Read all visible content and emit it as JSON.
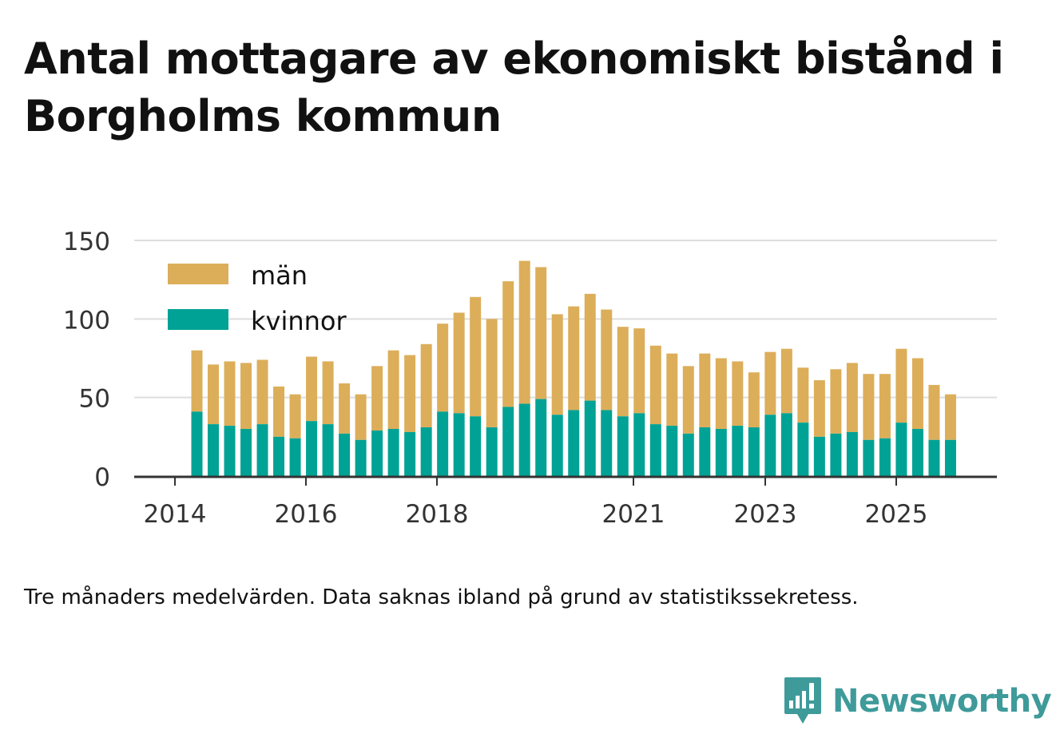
{
  "title": "Antal mottagare av ekonomiskt bistånd i Borgholms kommun",
  "note": "Tre månaders medelvärden. Data saknas ibland på grund av statistikssekretess.",
  "brand": "Newsworthy",
  "colors": {
    "man": "#dcae5a",
    "kvinnor": "#00a295",
    "grid": "#dddddd",
    "axis": "#333333",
    "brand": "#3f9a9a"
  },
  "chart_data": {
    "type": "bar",
    "stacked": true,
    "legend": "top-left",
    "grid": true,
    "ylim": [
      0,
      150
    ],
    "yticks": [
      0,
      50,
      100,
      150
    ],
    "xticks": [
      "2014",
      "2016",
      "2018",
      "2021",
      "2023",
      "2025"
    ],
    "series": [
      {
        "name": "kvinnor",
        "values": [
          41,
          33,
          32,
          30,
          33,
          25,
          24,
          35,
          33,
          27,
          23,
          29,
          30,
          28,
          31,
          41,
          40,
          38,
          31,
          44,
          46,
          49,
          39,
          42,
          48,
          42,
          38,
          40,
          33,
          32,
          27,
          31,
          30,
          32,
          31,
          39,
          40,
          34,
          25,
          27,
          28,
          23,
          24,
          34,
          30,
          23,
          23
        ]
      },
      {
        "name": "män",
        "values": [
          39,
          38,
          41,
          42,
          41,
          32,
          28,
          41,
          40,
          32,
          29,
          41,
          50,
          49,
          53,
          56,
          64,
          76,
          69,
          80,
          91,
          84,
          64,
          66,
          68,
          64,
          57,
          54,
          50,
          46,
          43,
          47,
          45,
          41,
          35,
          40,
          41,
          35,
          36,
          41,
          44,
          42,
          41,
          47,
          45,
          35,
          29
        ]
      }
    ]
  }
}
